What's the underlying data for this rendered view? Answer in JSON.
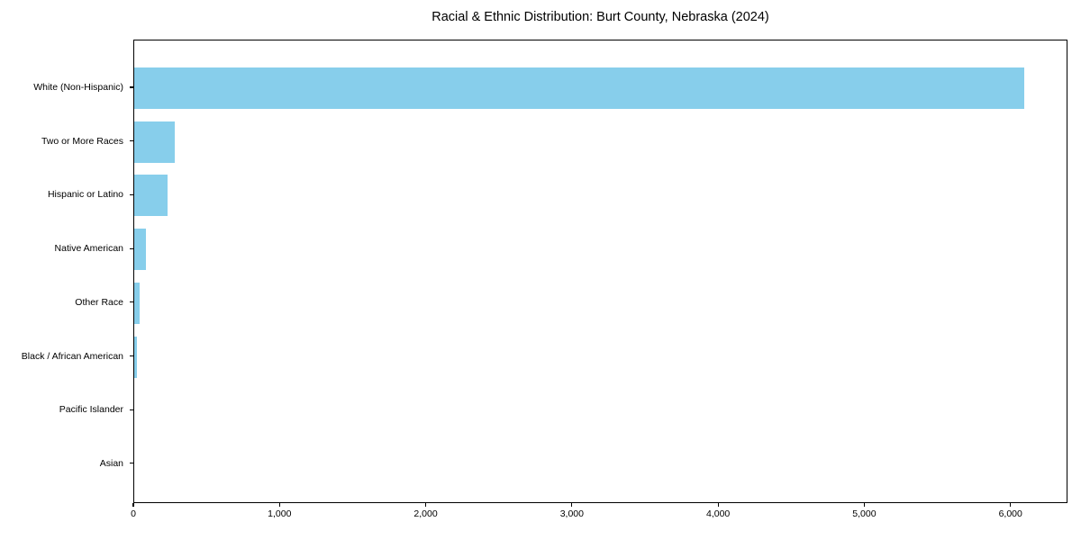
{
  "chart_data": {
    "type": "bar",
    "orientation": "horizontal",
    "title": "Racial & Ethnic Distribution: Burt County, Nebraska (2024)",
    "categories": [
      "White (Non-Hispanic)",
      "Two or More Races",
      "Hispanic or Latino",
      "Native American",
      "Other Race",
      "Black / African American",
      "Pacific Islander",
      "Asian"
    ],
    "values": [
      6085,
      275,
      225,
      80,
      40,
      18,
      0,
      0
    ],
    "xlabel": "",
    "ylabel": "",
    "xlim": [
      0,
      6390
    ],
    "x_ticks": [
      0,
      1000,
      2000,
      3000,
      4000,
      5000,
      6000
    ],
    "x_tick_labels": [
      "0",
      "1,000",
      "2,000",
      "3,000",
      "4,000",
      "5,000",
      "6,000"
    ],
    "grid": false,
    "legend": false,
    "bar_color": "#87CEEB",
    "axis_color": "#000000",
    "background_color": "#FFFFFF"
  }
}
